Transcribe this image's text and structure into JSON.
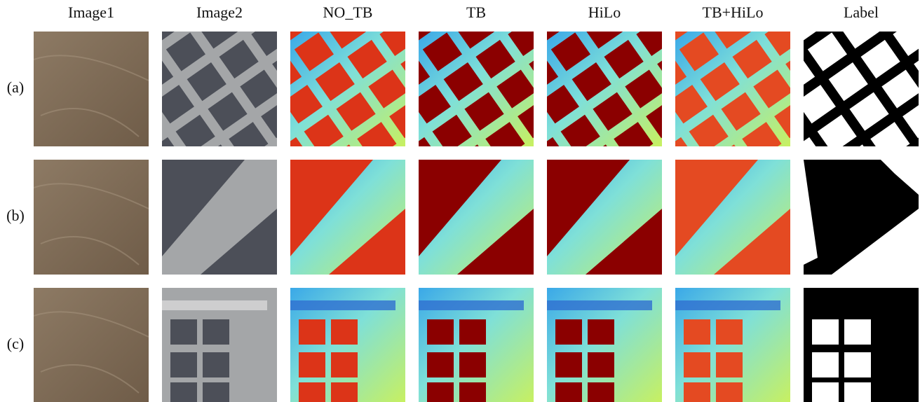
{
  "column_headers": [
    "Image1",
    "Image2",
    "NO_TB",
    "TB",
    "HiLo",
    "TB+HiLo",
    "Label"
  ],
  "row_labels": [
    "(a)",
    "(b)",
    "(c)"
  ]
}
